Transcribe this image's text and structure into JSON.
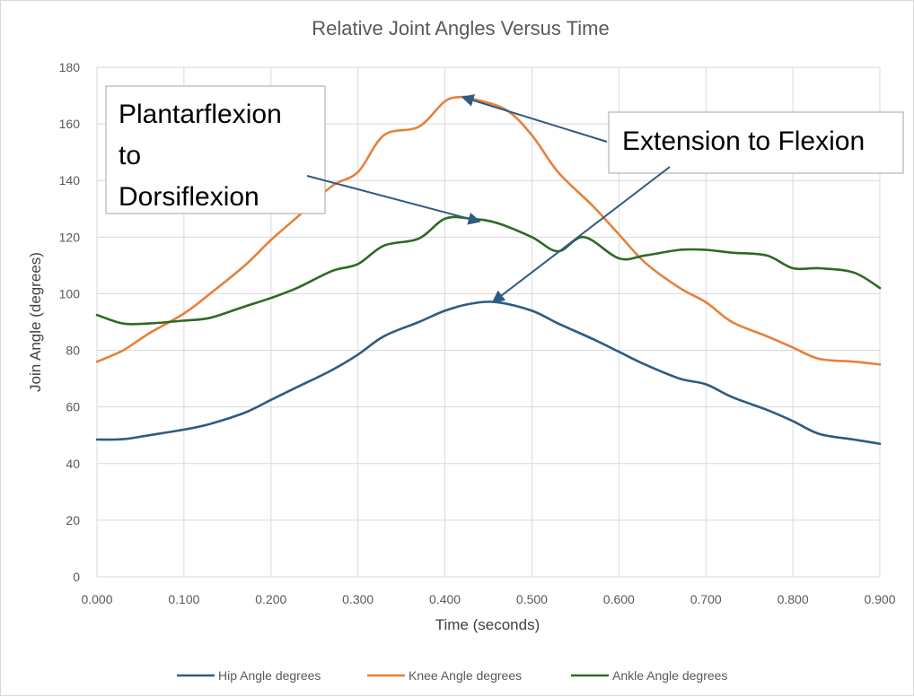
{
  "chart_data": {
    "type": "line",
    "title": "Relative Joint Angles Versus Time",
    "xlabel": "Time (seconds)",
    "ylabel": "Join Angle (degrees)",
    "xlim": [
      0,
      0.9
    ],
    "ylim": [
      0,
      180
    ],
    "x_ticks": [
      "0.000",
      "0.100",
      "0.200",
      "0.300",
      "0.400",
      "0.500",
      "0.600",
      "0.700",
      "0.800",
      "0.900"
    ],
    "y_ticks": [
      "0",
      "20",
      "40",
      "60",
      "80",
      "100",
      "120",
      "140",
      "160",
      "180"
    ],
    "grid": "vertical-and-horizontal",
    "legend_position": "bottom",
    "colors": {
      "hip": "#2e5b82",
      "knee": "#e6813a",
      "ankle": "#2e6a24",
      "grid": "#d9d9d9",
      "arrow": "#2e5b82"
    },
    "series": [
      {
        "name": "Hip Angle degrees",
        "key": "hip",
        "x": [
          0,
          0.03,
          0.06,
          0.1,
          0.13,
          0.17,
          0.2,
          0.23,
          0.27,
          0.3,
          0.33,
          0.37,
          0.4,
          0.43,
          0.46,
          0.5,
          0.53,
          0.57,
          0.6,
          0.63,
          0.67,
          0.7,
          0.73,
          0.77,
          0.8,
          0.83,
          0.87,
          0.9
        ],
        "values": [
          48.5,
          48.6,
          50,
          52,
          54,
          58,
          62.5,
          67,
          73,
          78.5,
          85,
          90,
          94,
          96.5,
          97,
          94,
          89.5,
          84,
          79.5,
          75,
          70,
          68,
          63.5,
          59,
          55,
          50.5,
          48.5,
          47
        ]
      },
      {
        "name": "Knee Angle degrees",
        "key": "knee",
        "x": [
          0,
          0.03,
          0.06,
          0.1,
          0.13,
          0.17,
          0.2,
          0.23,
          0.27,
          0.3,
          0.33,
          0.37,
          0.4,
          0.42,
          0.43,
          0.47,
          0.5,
          0.53,
          0.57,
          0.6,
          0.63,
          0.67,
          0.7,
          0.73,
          0.77,
          0.8,
          0.83,
          0.87,
          0.9
        ],
        "values": [
          76,
          80,
          86,
          93,
          100,
          110,
          119,
          127,
          138,
          143,
          156,
          159,
          168,
          169.5,
          169,
          165,
          156,
          143,
          131,
          121,
          111,
          102,
          97,
          90,
          85,
          81,
          77,
          76,
          75
        ]
      },
      {
        "name": "Ankle Angle degrees",
        "key": "ankle",
        "x": [
          0,
          0.03,
          0.06,
          0.1,
          0.13,
          0.17,
          0.2,
          0.23,
          0.27,
          0.3,
          0.33,
          0.37,
          0.4,
          0.43,
          0.46,
          0.5,
          0.53,
          0.56,
          0.6,
          0.63,
          0.67,
          0.7,
          0.73,
          0.77,
          0.8,
          0.83,
          0.87,
          0.9
        ],
        "values": [
          92.5,
          89.5,
          89.5,
          90.5,
          91.5,
          95.5,
          98.5,
          102,
          108,
          110.5,
          117,
          119.5,
          126.5,
          126.5,
          125,
          120,
          115,
          120,
          112.5,
          113.5,
          115.5,
          115.5,
          114.5,
          113.5,
          109,
          109,
          107.5,
          102
        ]
      }
    ],
    "annotations": [
      {
        "key": "plantar",
        "lines": [
          "Plantarflexion",
          "to",
          "Dorsiflexion"
        ],
        "points_to": {
          "x": 0.44,
          "y": 125.5,
          "series": "Ankle Angle degrees"
        }
      },
      {
        "key": "extension",
        "lines": [
          "Extension to Flexion"
        ],
        "points_to": [
          {
            "x": 0.42,
            "y": 169.5,
            "series": "Knee Angle degrees"
          },
          {
            "x": 0.455,
            "y": 97,
            "series": "Hip Angle degrees"
          }
        ]
      }
    ]
  }
}
